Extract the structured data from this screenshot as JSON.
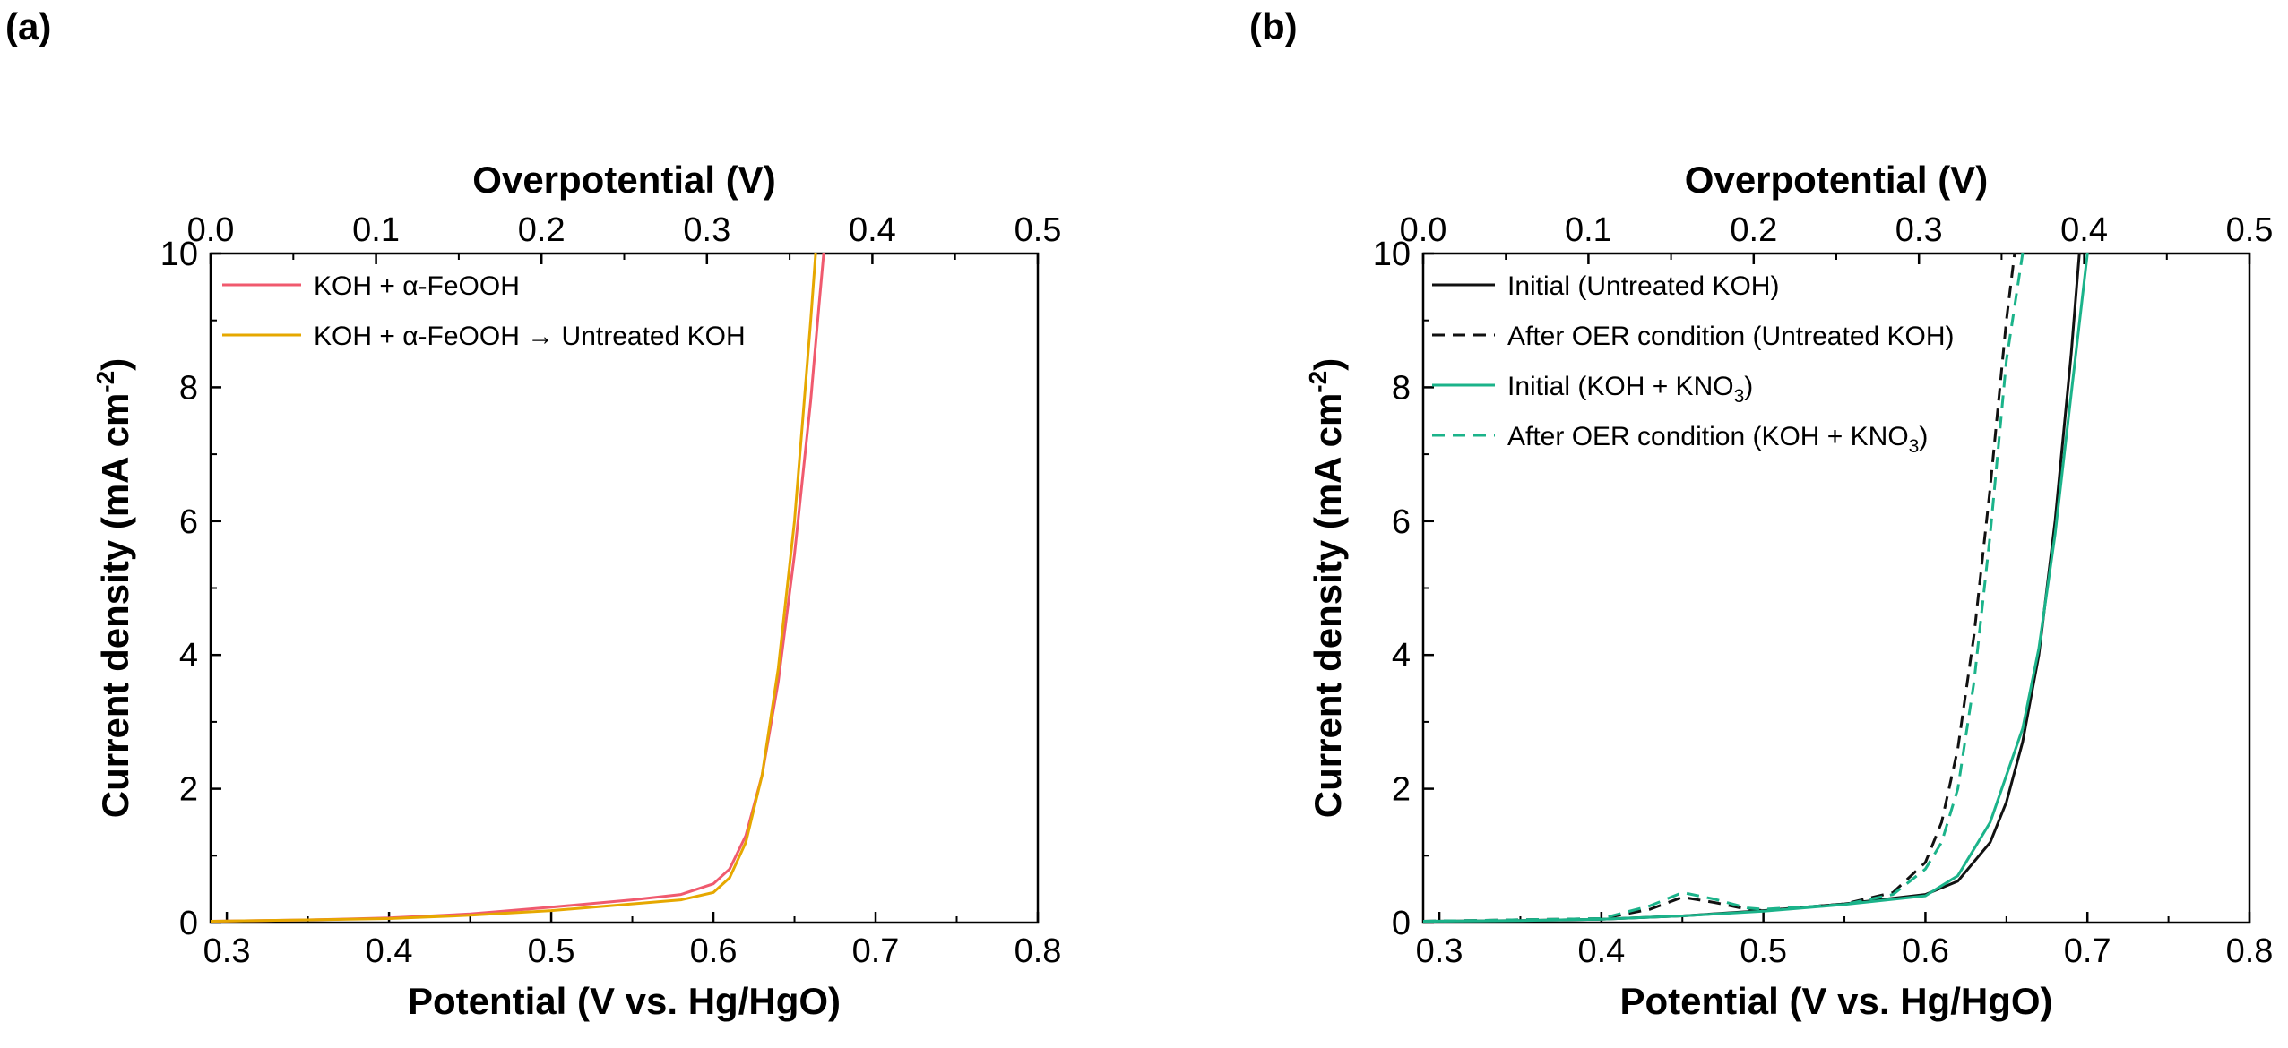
{
  "panel_labels": {
    "a": "(a)",
    "b": "(b)"
  },
  "chart_data": [
    {
      "type": "line",
      "panel": "(a)",
      "xlabel": "Potential (V vs. Hg/HgO)",
      "x2label": "Overpotential (V)",
      "ylabel_main": "Current density (mA cm",
      "ylabel_sup": "-2",
      "ylabel_end": ")",
      "xlim": [
        0.29,
        0.8
      ],
      "ylim": [
        0,
        10
      ],
      "x2lim": [
        0.0,
        0.5
      ],
      "xticks": [
        "0.3",
        "0.4",
        "0.5",
        "0.6",
        "0.7",
        "0.8"
      ],
      "x2ticks": [
        "0.0",
        "0.1",
        "0.2",
        "0.3",
        "0.4",
        "0.5"
      ],
      "yticks": [
        "0",
        "2",
        "4",
        "6",
        "8",
        "10"
      ],
      "legend_position": "top-left",
      "series": [
        {
          "name": "KOH + α-FeOOH",
          "color": "#f05a6e",
          "dash": "solid",
          "x": [
            0.29,
            0.35,
            0.4,
            0.45,
            0.5,
            0.55,
            0.58,
            0.6,
            0.61,
            0.62,
            0.63,
            0.64,
            0.65,
            0.66,
            0.665,
            0.668
          ],
          "y": [
            0.02,
            0.04,
            0.07,
            0.13,
            0.23,
            0.34,
            0.42,
            0.58,
            0.8,
            1.3,
            2.2,
            3.6,
            5.5,
            7.8,
            9.2,
            10
          ]
        },
        {
          "name": "KOH + α-FeOOH → Untreated KOH",
          "color": "#e6a800",
          "dash": "solid",
          "x": [
            0.29,
            0.35,
            0.4,
            0.45,
            0.5,
            0.55,
            0.58,
            0.6,
            0.61,
            0.62,
            0.63,
            0.64,
            0.65,
            0.655,
            0.66,
            0.663
          ],
          "y": [
            0.02,
            0.04,
            0.06,
            0.11,
            0.18,
            0.28,
            0.34,
            0.45,
            0.67,
            1.2,
            2.2,
            3.8,
            6.0,
            7.5,
            9.0,
            10
          ]
        }
      ]
    },
    {
      "type": "line",
      "panel": "(b)",
      "xlabel": "Potential (V vs. Hg/HgO)",
      "x2label": "Overpotential (V)",
      "ylabel_main": "Current density (mA cm",
      "ylabel_sup": "-2",
      "ylabel_end": ")",
      "xlim": [
        0.29,
        0.8
      ],
      "ylim": [
        0,
        10
      ],
      "x2lim": [
        0.0,
        0.5
      ],
      "xticks": [
        "0.3",
        "0.4",
        "0.5",
        "0.6",
        "0.7",
        "0.8"
      ],
      "x2ticks": [
        "0.0",
        "0.1",
        "0.2",
        "0.3",
        "0.4",
        "0.5"
      ],
      "yticks": [
        "0",
        "2",
        "4",
        "6",
        "8",
        "10"
      ],
      "legend_position": "top-left",
      "series": [
        {
          "name": "Initial (Untreated KOH)",
          "name_main": "Initial (Untreated KOH)",
          "color": "#111111",
          "dash": "solid",
          "x": [
            0.29,
            0.35,
            0.4,
            0.45,
            0.5,
            0.55,
            0.6,
            0.62,
            0.64,
            0.65,
            0.66,
            0.67,
            0.68,
            0.69,
            0.695
          ],
          "y": [
            0.02,
            0.03,
            0.05,
            0.1,
            0.18,
            0.28,
            0.42,
            0.62,
            1.2,
            1.8,
            2.7,
            4.0,
            6.0,
            8.5,
            10
          ]
        },
        {
          "name": "After OER condition (Untreated KOH)",
          "name_main": "After OER condition (Untreated KOH)",
          "color": "#111111",
          "dash": "dashed",
          "x": [
            0.29,
            0.4,
            0.43,
            0.45,
            0.47,
            0.49,
            0.5,
            0.55,
            0.58,
            0.6,
            0.61,
            0.62,
            0.63,
            0.64,
            0.65,
            0.655
          ],
          "y": [
            0.02,
            0.06,
            0.2,
            0.38,
            0.3,
            0.2,
            0.18,
            0.28,
            0.45,
            0.9,
            1.5,
            2.6,
            4.3,
            6.5,
            9.0,
            10
          ]
        },
        {
          "name": "Initial (KOH + KNO3)",
          "name_main": "Initial (KOH + KNO",
          "name_sub": "3",
          "name_end": ")",
          "color": "#1bb38a",
          "dash": "solid",
          "x": [
            0.29,
            0.35,
            0.4,
            0.45,
            0.5,
            0.55,
            0.6,
            0.62,
            0.64,
            0.66,
            0.67,
            0.68,
            0.69,
            0.7
          ],
          "y": [
            0.02,
            0.03,
            0.05,
            0.1,
            0.17,
            0.27,
            0.4,
            0.7,
            1.5,
            2.9,
            4.1,
            5.8,
            7.9,
            10
          ]
        },
        {
          "name": "After OER condition (KOH + KNO3)",
          "name_main": "After OER condition (KOH + KNO",
          "name_sub": "3",
          "name_end": ")",
          "color": "#1bb38a",
          "dash": "dashed",
          "x": [
            0.29,
            0.4,
            0.43,
            0.45,
            0.47,
            0.49,
            0.5,
            0.55,
            0.58,
            0.6,
            0.61,
            0.62,
            0.63,
            0.64,
            0.65,
            0.66
          ],
          "y": [
            0.02,
            0.06,
            0.25,
            0.45,
            0.35,
            0.22,
            0.2,
            0.27,
            0.42,
            0.8,
            1.2,
            2.0,
            3.6,
            5.8,
            8.4,
            10
          ]
        }
      ]
    }
  ]
}
